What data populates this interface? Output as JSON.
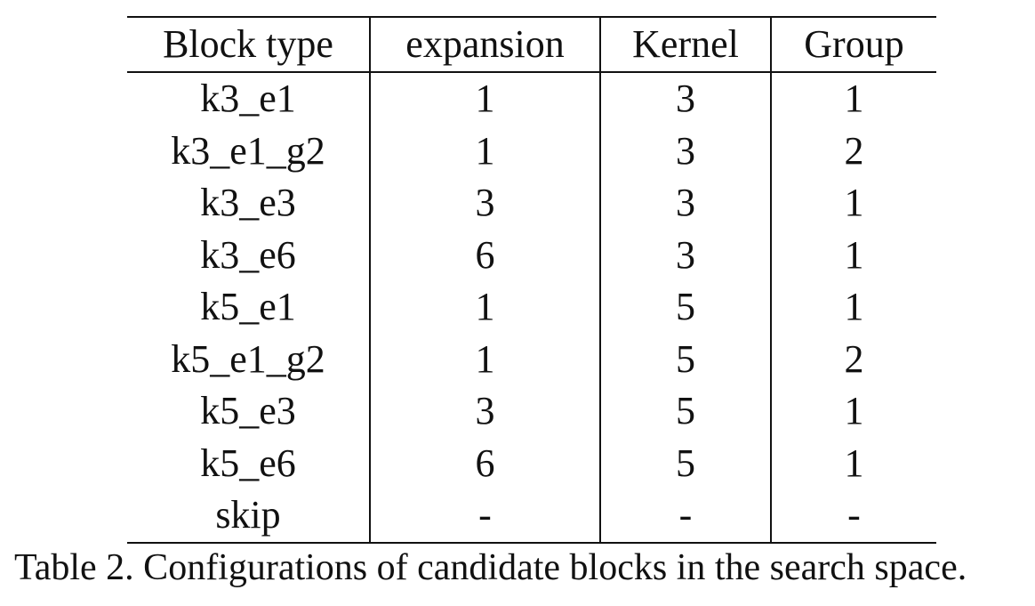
{
  "table": {
    "headers": [
      "Block type",
      "expansion",
      "Kernel",
      "Group"
    ],
    "rows": [
      [
        "k3_e1",
        "1",
        "3",
        "1"
      ],
      [
        "k3_e1_g2",
        "1",
        "3",
        "2"
      ],
      [
        "k3_e3",
        "3",
        "3",
        "1"
      ],
      [
        "k3_e6",
        "6",
        "3",
        "1"
      ],
      [
        "k5_e1",
        "1",
        "5",
        "1"
      ],
      [
        "k5_e1_g2",
        "1",
        "5",
        "2"
      ],
      [
        "k5_e3",
        "3",
        "5",
        "1"
      ],
      [
        "k5_e6",
        "6",
        "5",
        "1"
      ],
      [
        "skip",
        "-",
        "-",
        "-"
      ]
    ]
  },
  "caption": "Table 2. Configurations of candidate blocks in the search space."
}
